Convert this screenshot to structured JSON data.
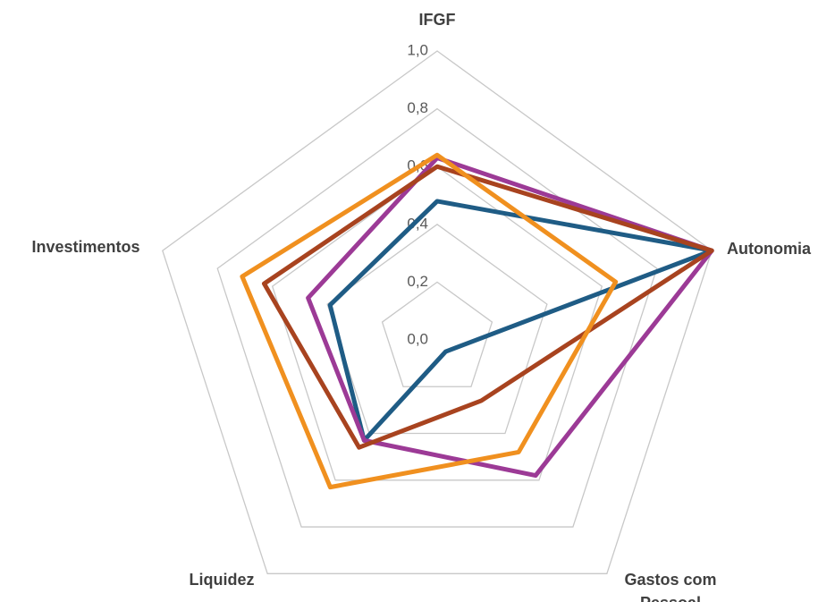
{
  "chart_data": {
    "type": "radar",
    "categories": [
      "IFGF",
      "Autonomia",
      "Gastos com Pessoal",
      "Liquidez",
      "Investimentos"
    ],
    "series": [
      {
        "color": "#1f5c85",
        "values": [
          0.48,
          1.0,
          0.05,
          0.43,
          0.39
        ]
      },
      {
        "color": "#9c3a96",
        "values": [
          0.63,
          1.0,
          0.58,
          0.43,
          0.47
        ]
      },
      {
        "color": "#a8431f",
        "values": [
          0.6,
          1.0,
          0.26,
          0.46,
          0.63
        ]
      },
      {
        "color": "#f0901f",
        "values": [
          0.64,
          0.65,
          0.48,
          0.63,
          0.71
        ]
      }
    ],
    "ylim": [
      0,
      1
    ],
    "yticks": [
      {
        "value": 0,
        "label": "0,0"
      },
      {
        "value": 0.2,
        "label": "0,2"
      },
      {
        "value": 0.4,
        "label": "0,4"
      },
      {
        "value": 0.6,
        "label": "0,6"
      },
      {
        "value": 0.8,
        "label": "0,8"
      },
      {
        "value": 1,
        "label": "1,0"
      }
    ],
    "grid": true
  }
}
